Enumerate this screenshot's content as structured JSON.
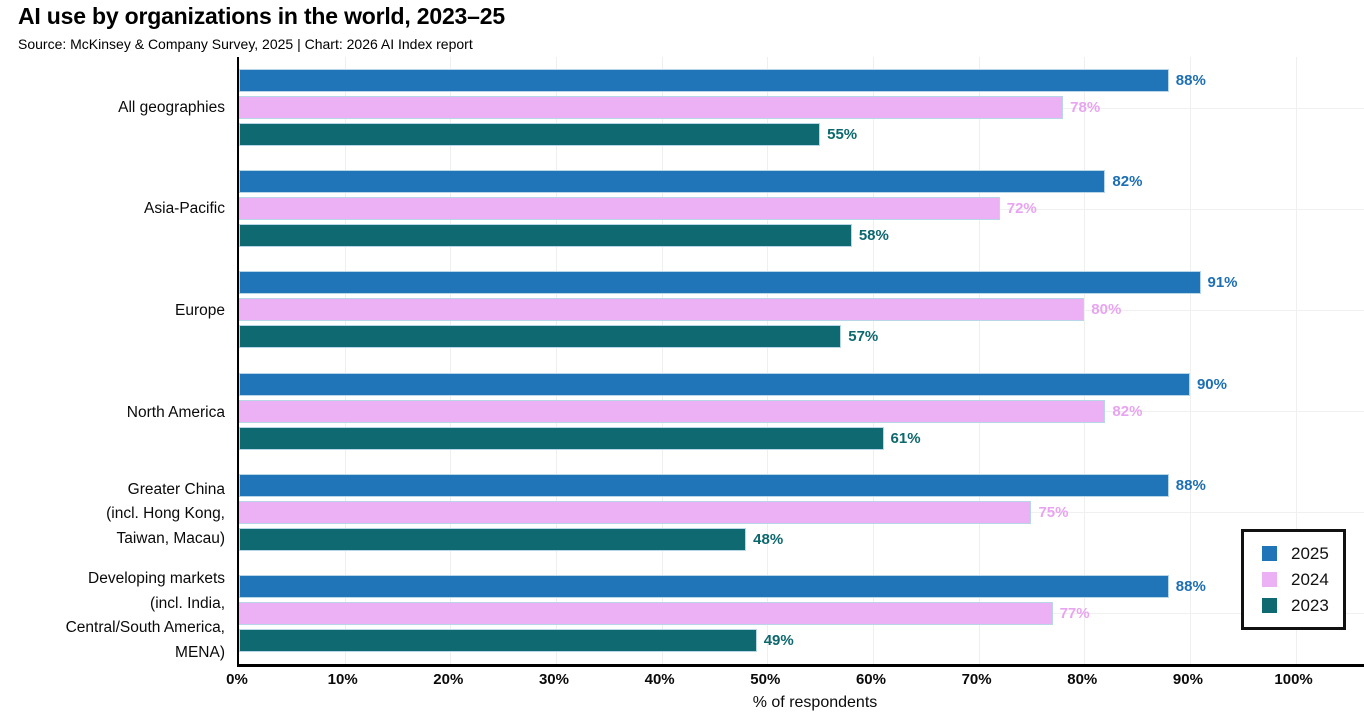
{
  "title": "AI use by organizations in the world, 2023–25",
  "subtitle": "Source: McKinsey & Company Survey, 2025 | Chart: 2026 AI Index report",
  "chart_data": {
    "type": "bar",
    "orientation": "horizontal",
    "title": "AI use by organizations in the world, 2023–25",
    "subtitle": "Source: McKinsey & Company Survey, 2025 | Chart: 2026 AI Index report",
    "xlabel": "% of respondents",
    "ylabel": "",
    "xlim": [
      0,
      100
    ],
    "grid": true,
    "value_suffix": "%",
    "categories": [
      "All geographies",
      "Asia-Pacific",
      "Europe",
      "North America",
      "Greater China (incl. Hong Kong, Taiwan, Macau)",
      "Developing markets (incl. India, Central/South America, MENA)"
    ],
    "category_label_lines": [
      [
        "All geographies"
      ],
      [
        "Asia-Pacific"
      ],
      [
        "Europe"
      ],
      [
        "North America"
      ],
      [
        "Greater China",
        "(incl. Hong Kong,",
        "Taiwan, Macau)"
      ],
      [
        "Developing markets",
        "(incl. India,",
        "Central/South America,",
        "MENA)"
      ]
    ],
    "series": [
      {
        "name": "2025",
        "color": "#2074B8",
        "label_color": "#1D6FB4",
        "values": [
          88,
          82,
          91,
          90,
          88,
          88
        ]
      },
      {
        "name": "2024",
        "color": "#ECB0F4",
        "label_color": "#E8A4F1",
        "values": [
          78,
          72,
          80,
          82,
          75,
          77
        ]
      },
      {
        "name": "2023",
        "color": "#0E6A70",
        "label_color": "#0C686E",
        "values": [
          55,
          58,
          57,
          61,
          48,
          49
        ]
      }
    ],
    "x_ticks": [
      "0%",
      "10%",
      "20%",
      "30%",
      "40%",
      "50%",
      "60%",
      "70%",
      "80%",
      "90%",
      "100%"
    ],
    "legend": {
      "position": "center-right",
      "entries": [
        "2025",
        "2024",
        "2023"
      ]
    }
  }
}
